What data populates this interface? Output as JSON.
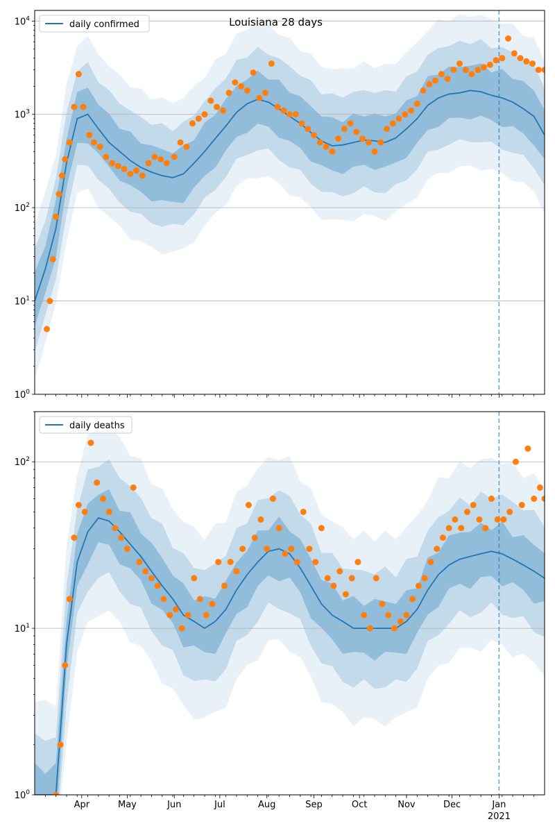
{
  "figure": {
    "title": "Louisiana 28 days",
    "band_color": "#1f77b4",
    "line_color": "#1f77b4",
    "point_color": "#ff7f0e",
    "marker_line_date": "2021-01-01"
  },
  "chart_data": [
    {
      "type": "line",
      "title": "Louisiana 28 days",
      "xlabel": "",
      "ylabel": "",
      "yscale": "log",
      "ylim": [
        1,
        13000
      ],
      "xlim": [
        "2020-03-01",
        "2021-01-31"
      ],
      "grid": "y-major",
      "legend": "top-left",
      "x_tick_labels": [
        "Apr",
        "May",
        "Jun",
        "Jul",
        "Aug",
        "Sep",
        "Oct",
        "Nov",
        "Dec",
        "Jan",
        "2021"
      ],
      "y_tick_labels": [
        {
          "base": "10",
          "exp": "0"
        },
        {
          "base": "10",
          "exp": "1"
        },
        {
          "base": "10",
          "exp": "2"
        },
        {
          "base": "10",
          "exp": "3"
        },
        {
          "base": "10",
          "exp": "4"
        }
      ],
      "series": [
        {
          "name": "daily confirmed",
          "kind": "median-line",
          "x": [
            "2020-03-01",
            "2020-03-08",
            "2020-03-15",
            "2020-03-22",
            "2020-03-29",
            "2020-04-05",
            "2020-04-12",
            "2020-04-19",
            "2020-04-26",
            "2020-05-03",
            "2020-05-10",
            "2020-05-17",
            "2020-05-24",
            "2020-05-31",
            "2020-06-07",
            "2020-06-14",
            "2020-06-21",
            "2020-06-28",
            "2020-07-05",
            "2020-07-12",
            "2020-07-19",
            "2020-07-26",
            "2020-08-02",
            "2020-08-09",
            "2020-08-16",
            "2020-08-23",
            "2020-08-30",
            "2020-09-06",
            "2020-09-13",
            "2020-09-20",
            "2020-09-27",
            "2020-10-04",
            "2020-10-11",
            "2020-10-18",
            "2020-10-25",
            "2020-11-01",
            "2020-11-08",
            "2020-11-15",
            "2020-11-22",
            "2020-11-29",
            "2020-12-06",
            "2020-12-13",
            "2020-12-20",
            "2020-12-27",
            "2021-01-03",
            "2021-01-10",
            "2021-01-17",
            "2021-01-24",
            "2021-01-31"
          ],
          "values": [
            10,
            22,
            60,
            300,
            900,
            1000,
            700,
            500,
            400,
            320,
            270,
            240,
            220,
            210,
            230,
            300,
            400,
            550,
            750,
            1050,
            1300,
            1450,
            1350,
            1150,
            950,
            800,
            640,
            520,
            460,
            470,
            500,
            530,
            520,
            500,
            560,
            700,
            900,
            1250,
            1500,
            1650,
            1700,
            1800,
            1750,
            1600,
            1500,
            1350,
            1150,
            950,
            600
          ]
        },
        {
          "name": "",
          "kind": "observed-points",
          "x": [
            "2020-03-09",
            "2020-03-11",
            "2020-03-13",
            "2020-03-15",
            "2020-03-17",
            "2020-03-19",
            "2020-03-21",
            "2020-03-24",
            "2020-03-27",
            "2020-03-30",
            "2020-04-02",
            "2020-04-06",
            "2020-04-09",
            "2020-04-13",
            "2020-04-17",
            "2020-04-21",
            "2020-04-25",
            "2020-04-29",
            "2020-05-03",
            "2020-05-07",
            "2020-05-11",
            "2020-05-15",
            "2020-05-19",
            "2020-05-23",
            "2020-05-27",
            "2020-06-01",
            "2020-06-05",
            "2020-06-09",
            "2020-06-13",
            "2020-06-17",
            "2020-06-21",
            "2020-06-25",
            "2020-06-29",
            "2020-07-03",
            "2020-07-07",
            "2020-07-11",
            "2020-07-15",
            "2020-07-19",
            "2020-07-23",
            "2020-07-27",
            "2020-07-31",
            "2020-08-04",
            "2020-08-08",
            "2020-08-12",
            "2020-08-16",
            "2020-08-20",
            "2020-08-24",
            "2020-08-28",
            "2020-09-01",
            "2020-09-05",
            "2020-09-09",
            "2020-09-13",
            "2020-09-17",
            "2020-09-21",
            "2020-09-25",
            "2020-09-29",
            "2020-10-03",
            "2020-10-07",
            "2020-10-11",
            "2020-10-15",
            "2020-10-19",
            "2020-10-23",
            "2020-10-27",
            "2020-10-31",
            "2020-11-04",
            "2020-11-08",
            "2020-11-12",
            "2020-11-16",
            "2020-11-20",
            "2020-11-24",
            "2020-11-28",
            "2020-12-02",
            "2020-12-06",
            "2020-12-10",
            "2020-12-14",
            "2020-12-18",
            "2020-12-22",
            "2020-12-26",
            "2020-12-30",
            "2021-01-03",
            "2021-01-07",
            "2021-01-11",
            "2021-01-15",
            "2021-01-19",
            "2021-01-23",
            "2021-01-27",
            "2021-01-31"
          ],
          "values": [
            5,
            10,
            28,
            80,
            140,
            220,
            330,
            500,
            1200,
            2700,
            1200,
            600,
            500,
            450,
            350,
            300,
            280,
            260,
            230,
            250,
            220,
            300,
            350,
            330,
            300,
            350,
            500,
            450,
            800,
            900,
            1000,
            1400,
            1200,
            1100,
            1700,
            2200,
            2000,
            1800,
            2800,
            1500,
            1700,
            3500,
            1200,
            1100,
            1000,
            1000,
            800,
            700,
            600,
            500,
            450,
            400,
            550,
            700,
            800,
            650,
            550,
            500,
            400,
            500,
            700,
            800,
            900,
            1000,
            1100,
            1300,
            1800,
            2100,
            2300,
            2700,
            2400,
            3000,
            3500,
            3000,
            2700,
            3000,
            3200,
            3400,
            3800,
            4000,
            6500,
            4500,
            4000,
            3700,
            3500,
            3000,
            3000
          ]
        }
      ]
    },
    {
      "type": "line",
      "title": "",
      "xlabel": "",
      "ylabel": "",
      "yscale": "log",
      "ylim": [
        1,
        200
      ],
      "xlim": [
        "2020-03-01",
        "2021-01-31"
      ],
      "grid": "y-major",
      "legend": "top-left",
      "x_tick_labels": [
        "Apr",
        "May",
        "Jun",
        "Jul",
        "Aug",
        "Sep",
        "Oct",
        "Nov",
        "Dec",
        "Jan",
        "2021"
      ],
      "y_tick_labels": [
        {
          "base": "10",
          "exp": "0"
        },
        {
          "base": "10",
          "exp": "1"
        },
        {
          "base": "10",
          "exp": "2"
        }
      ],
      "series": [
        {
          "name": "daily deaths",
          "kind": "median-line",
          "x": [
            "2020-03-01",
            "2020-03-08",
            "2020-03-15",
            "2020-03-22",
            "2020-03-29",
            "2020-04-05",
            "2020-04-12",
            "2020-04-19",
            "2020-04-26",
            "2020-05-03",
            "2020-05-10",
            "2020-05-17",
            "2020-05-24",
            "2020-05-31",
            "2020-06-07",
            "2020-06-14",
            "2020-06-21",
            "2020-06-28",
            "2020-07-05",
            "2020-07-12",
            "2020-07-19",
            "2020-07-26",
            "2020-08-02",
            "2020-08-09",
            "2020-08-16",
            "2020-08-23",
            "2020-08-30",
            "2020-09-06",
            "2020-09-13",
            "2020-09-20",
            "2020-09-27",
            "2020-10-04",
            "2020-10-11",
            "2020-10-18",
            "2020-10-25",
            "2020-11-01",
            "2020-11-08",
            "2020-11-15",
            "2020-11-22",
            "2020-11-29",
            "2020-12-06",
            "2020-12-13",
            "2020-12-20",
            "2020-12-27",
            "2021-01-03",
            "2021-01-10",
            "2021-01-17",
            "2021-01-24",
            "2021-01-31"
          ],
          "values": [
            1,
            1,
            1,
            8,
            25,
            38,
            46,
            44,
            38,
            32,
            27,
            22,
            18,
            15,
            12,
            11,
            10,
            11,
            13,
            17,
            21,
            25,
            29,
            30,
            28,
            23,
            18,
            14,
            12,
            11,
            10,
            10,
            10,
            10,
            10,
            11,
            13,
            17,
            21,
            24,
            26,
            27,
            28,
            29,
            28,
            26,
            24,
            22,
            20
          ]
        },
        {
          "name": "",
          "kind": "observed-points",
          "x": [
            "2020-03-15",
            "2020-03-18",
            "2020-03-21",
            "2020-03-24",
            "2020-03-27",
            "2020-03-30",
            "2020-04-03",
            "2020-04-07",
            "2020-04-11",
            "2020-04-15",
            "2020-04-19",
            "2020-04-23",
            "2020-04-27",
            "2020-05-01",
            "2020-05-05",
            "2020-05-09",
            "2020-05-13",
            "2020-05-17",
            "2020-05-21",
            "2020-05-25",
            "2020-05-29",
            "2020-06-02",
            "2020-06-06",
            "2020-06-10",
            "2020-06-14",
            "2020-06-18",
            "2020-06-22",
            "2020-06-26",
            "2020-06-30",
            "2020-07-04",
            "2020-07-08",
            "2020-07-12",
            "2020-07-16",
            "2020-07-20",
            "2020-07-24",
            "2020-07-28",
            "2020-08-01",
            "2020-08-05",
            "2020-08-09",
            "2020-08-13",
            "2020-08-17",
            "2020-08-21",
            "2020-08-25",
            "2020-08-29",
            "2020-09-02",
            "2020-09-06",
            "2020-09-10",
            "2020-09-14",
            "2020-09-18",
            "2020-09-22",
            "2020-09-26",
            "2020-09-30",
            "2020-10-04",
            "2020-10-08",
            "2020-10-12",
            "2020-10-16",
            "2020-10-20",
            "2020-10-24",
            "2020-10-28",
            "2020-11-01",
            "2020-11-05",
            "2020-11-09",
            "2020-11-13",
            "2020-11-17",
            "2020-11-21",
            "2020-11-25",
            "2020-11-29",
            "2020-12-03",
            "2020-12-07",
            "2020-12-11",
            "2020-12-15",
            "2020-12-19",
            "2020-12-23",
            "2020-12-27",
            "2020-12-31",
            "2021-01-04",
            "2021-01-08",
            "2021-01-12",
            "2021-01-16",
            "2021-01-20",
            "2021-01-24",
            "2021-01-28",
            "2021-01-31"
          ],
          "values": [
            1,
            2,
            6,
            15,
            35,
            55,
            50,
            130,
            75,
            60,
            50,
            40,
            35,
            30,
            70,
            25,
            22,
            20,
            18,
            15,
            12,
            13,
            10,
            12,
            20,
            15,
            12,
            14,
            25,
            18,
            25,
            22,
            30,
            55,
            35,
            45,
            30,
            60,
            40,
            28,
            30,
            25,
            50,
            30,
            25,
            40,
            20,
            18,
            22,
            16,
            20,
            25,
            12,
            10,
            20,
            14,
            12,
            10,
            11,
            12,
            15,
            18,
            20,
            25,
            30,
            35,
            40,
            45,
            40,
            50,
            55,
            45,
            40,
            60,
            45,
            45,
            50,
            100,
            55,
            120,
            60,
            70,
            60
          ]
        }
      ]
    }
  ]
}
